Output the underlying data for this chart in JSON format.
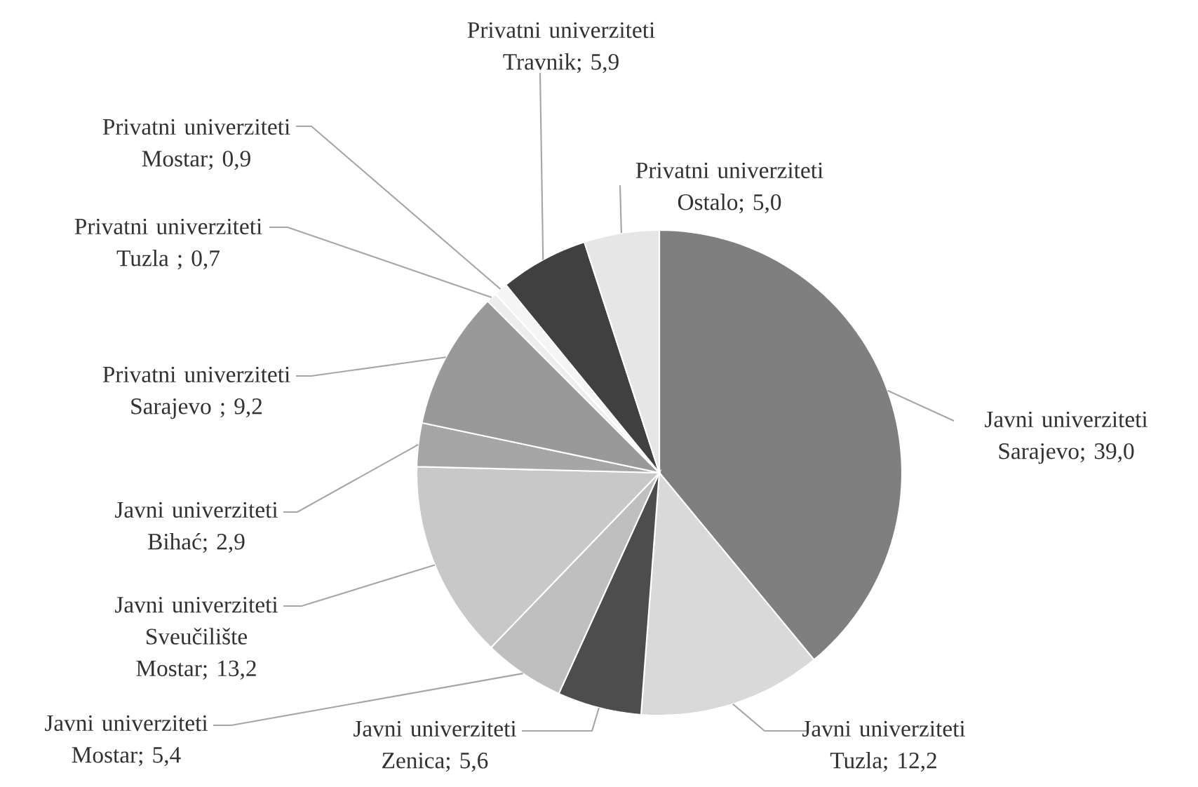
{
  "chart_data": {
    "type": "pie",
    "categories": [
      "Javni univerziteti Sarajevo",
      "Javni univerziteti Tuzla",
      "Javni univerziteti Zenica",
      "Javni univerziteti Mostar",
      "Javni univerziteti Sveučilište Mostar",
      "Javni univerziteti Bihać",
      "Privatni univerziteti Sarajevo ",
      "Privatni univerziteti Tuzla ",
      "Privatni univerziteti Mostar",
      "Privatni univerziteti Travnik",
      "Privatni univerziteti Ostalo"
    ],
    "values": [
      39.0,
      12.2,
      5.6,
      5.4,
      13.2,
      2.9,
      9.2,
      0.7,
      0.9,
      5.9,
      5.0
    ],
    "value_labels": [
      "; 39,0",
      "; 12,2",
      "; 5,6",
      "; 5,4",
      "; 13,2",
      "; 2,9",
      "; 9,2",
      "; 0,7",
      "; 0,9",
      "; 5,9",
      "; 5,0"
    ],
    "colors": [
      "#7f7f7f",
      "#d9d9d9",
      "#4d4d4d",
      "#bfbfbf",
      "#c8c8c8",
      "#a6a6a6",
      "#999999",
      "#ededed",
      "#f5f5f5",
      "#404040",
      "#e6e6e6"
    ]
  }
}
